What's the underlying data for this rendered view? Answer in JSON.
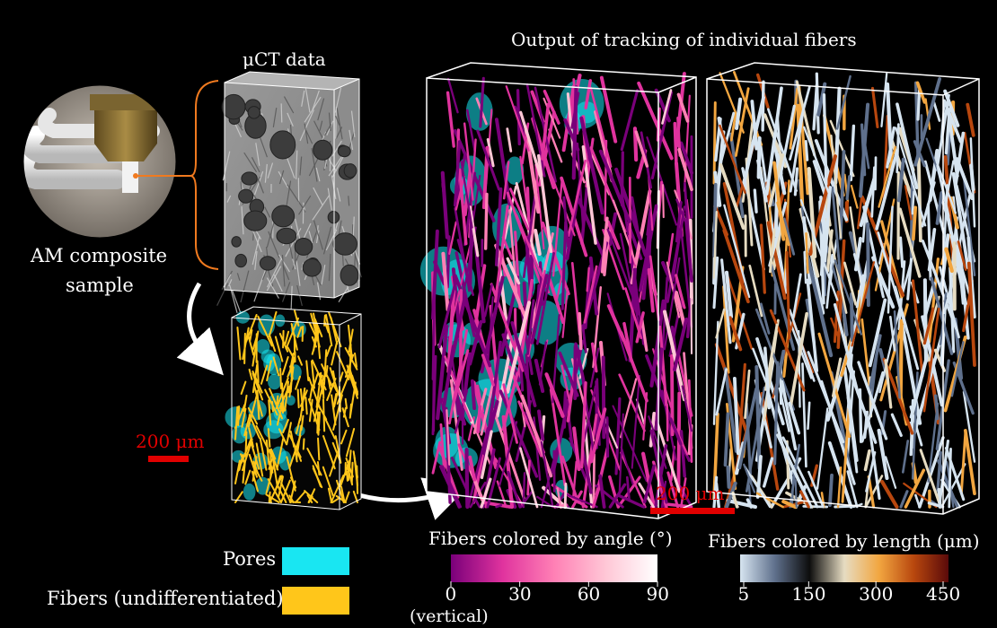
{
  "labels": {
    "uct_title": "μCT data",
    "sample_line1": "AM composite",
    "sample_line2": "sample",
    "output_title": "Output of tracking of individual fibers",
    "scale_small": "200 μm",
    "scale_large": "200 μm"
  },
  "legend": {
    "pores_label": "Pores",
    "pores_color": "#19e6f2",
    "fibers_label": "Fibers (undifferentiated)",
    "fibers_color": "#ffc61a"
  },
  "colorbar_angle": {
    "title": "Fibers colored by angle (°)",
    "ticks": [
      "0",
      "30",
      "60",
      "90"
    ],
    "tick_values": [
      0,
      30,
      60,
      90
    ],
    "range": [
      0,
      90
    ],
    "zero_note": "(vertical)",
    "colors": [
      "#7a007a",
      "#e0339e",
      "#ff80b5",
      "#ffc7d6",
      "#ffffff"
    ]
  },
  "colorbar_length": {
    "title": "Fibers colored by length (μm)",
    "ticks": [
      "5",
      "150",
      "300",
      "450"
    ],
    "tick_values": [
      5,
      150,
      300,
      450
    ],
    "range": [
      5,
      450
    ],
    "colors": [
      "#d6e4f0",
      "#5f708c",
      "#0d0d0d",
      "#e6dcc2",
      "#f2a640",
      "#b8470e",
      "#5a0a0a"
    ]
  }
}
